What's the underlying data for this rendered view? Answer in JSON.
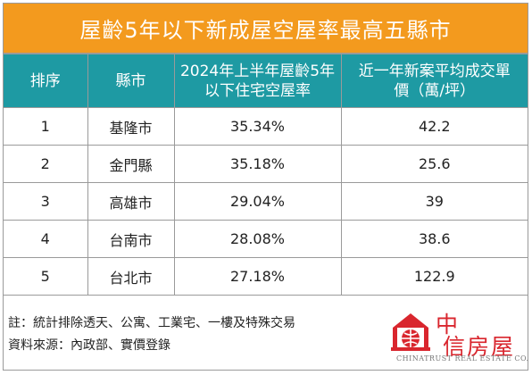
{
  "title": "屋齡5年以下新成屋空屋率最高五縣市",
  "headers": {
    "rank": "排序",
    "county": "縣市",
    "vacancy_line1": "2024年上半年屋齡5年",
    "vacancy_line2": "以下住宅空屋率",
    "price_line1": "近一年新案平均成交單",
    "price_line2": "價（萬/坪）"
  },
  "rows": [
    {
      "rank": "1",
      "county": "基隆市",
      "vacancy": "35.34%",
      "price": "42.2"
    },
    {
      "rank": "2",
      "county": "金門縣",
      "vacancy": "35.18%",
      "price": "25.6"
    },
    {
      "rank": "3",
      "county": "高雄市",
      "vacancy": "29.04%",
      "price": "39"
    },
    {
      "rank": "4",
      "county": "台南市",
      "vacancy": "28.08%",
      "price": "38.6"
    },
    {
      "rank": "5",
      "county": "台北市",
      "vacancy": "27.18%",
      "price": "122.9"
    }
  ],
  "footer": {
    "note": "註：統計排除透天、公寓、工業宅、一樓及特殊交易",
    "source": "資料來源：內政部、實價登錄"
  },
  "logo": {
    "name_line1": "中",
    "name_line2": "信房屋",
    "subtitle": "CHINATRUST REAL ESTATE CO.",
    "brand_red": "#d9262e"
  },
  "colors": {
    "title_bg": "#f39a1e",
    "header_bg": "#1e9aa3"
  }
}
